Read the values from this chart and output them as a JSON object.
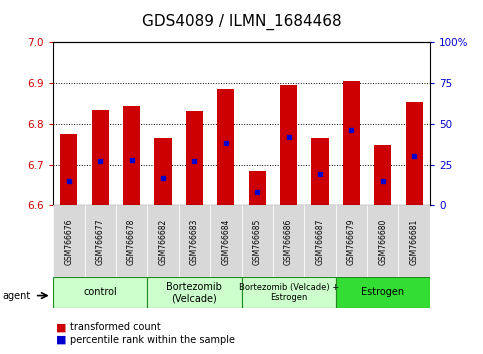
{
  "title": "GDS4089 / ILMN_1684468",
  "samples": [
    "GSM766676",
    "GSM766677",
    "GSM766678",
    "GSM766682",
    "GSM766683",
    "GSM766684",
    "GSM766685",
    "GSM766686",
    "GSM766687",
    "GSM766679",
    "GSM766680",
    "GSM766681"
  ],
  "transformed_counts": [
    6.775,
    6.835,
    6.845,
    6.765,
    6.832,
    6.885,
    6.685,
    6.895,
    6.765,
    6.905,
    6.748,
    6.855
  ],
  "percentile_ranks": [
    15,
    27,
    28,
    17,
    27,
    38,
    8,
    42,
    19,
    46,
    15,
    30
  ],
  "groups": [
    {
      "label": "control",
      "start": 0,
      "end": 3
    },
    {
      "label": "Bortezomib\n(Velcade)",
      "start": 3,
      "end": 6
    },
    {
      "label": "Bortezomib (Velcade) +\nEstrogen",
      "start": 6,
      "end": 9
    },
    {
      "label": "Estrogen",
      "start": 9,
      "end": 12
    }
  ],
  "group_colors": [
    "#ccffcc",
    "#ccffcc",
    "#ccffcc",
    "#33dd33"
  ],
  "ylim_left": [
    6.6,
    7.0
  ],
  "ylim_right": [
    0,
    100
  ],
  "yticks_left": [
    6.6,
    6.7,
    6.8,
    6.9,
    7.0
  ],
  "yticks_right": [
    0,
    25,
    50,
    75,
    100
  ],
  "bar_color": "#cc0000",
  "blue_color": "#0000cc",
  "bar_width": 0.55,
  "baseline": 6.6,
  "legend_items": [
    {
      "label": "transformed count",
      "color": "#cc0000"
    },
    {
      "label": "percentile rank within the sample",
      "color": "#0000cc"
    }
  ],
  "title_fontsize": 11
}
